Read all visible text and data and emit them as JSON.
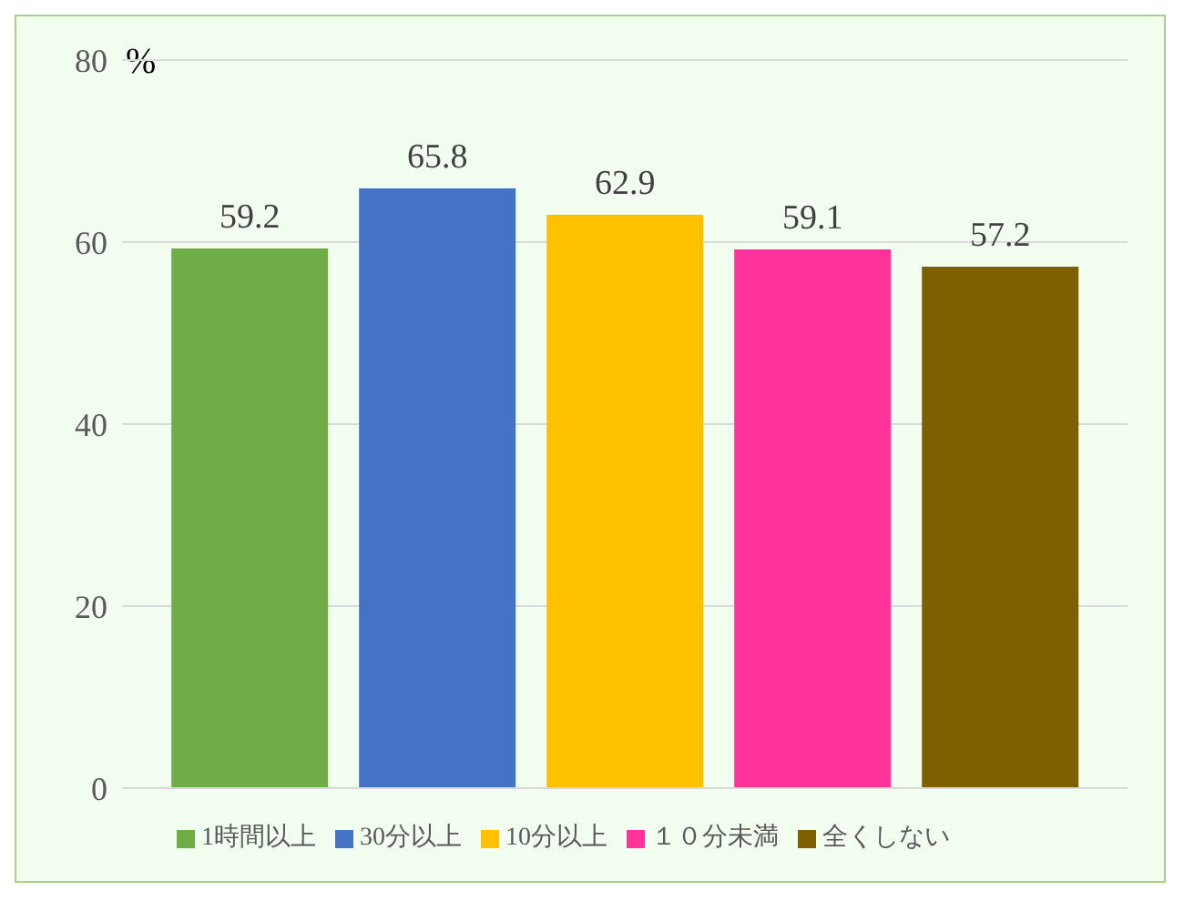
{
  "chart_data": {
    "type": "bar",
    "categories": [
      null
    ],
    "series": [
      {
        "name": "1時間以上",
        "color": "#70ad47",
        "values": [
          59.2
        ]
      },
      {
        "name": "30分以上",
        "color": "#4472c4",
        "values": [
          65.8
        ]
      },
      {
        "name": "10分以上",
        "color": "#ffc000",
        "values": [
          62.9
        ]
      },
      {
        "name": "１０分未満",
        "color": "#ff3399",
        "values": [
          59.1
        ]
      },
      {
        "name": "全くしない",
        "color": "#7f6000",
        "values": [
          57.2
        ]
      }
    ],
    "ylabel": "%",
    "ylim": [
      0,
      80
    ],
    "yticks": [
      0,
      20,
      40,
      60,
      80
    ],
    "grid": "y",
    "data_labels": true,
    "legend": "bottom",
    "tick_labels": "y"
  }
}
